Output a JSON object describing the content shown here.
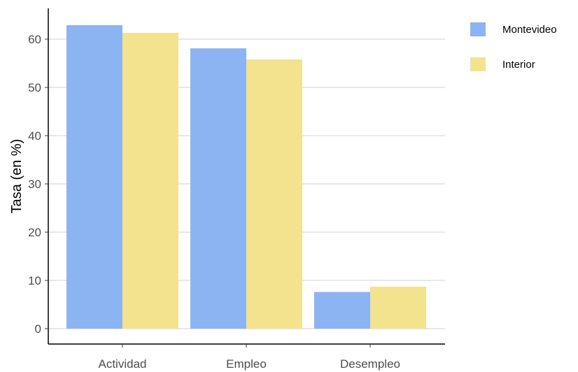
{
  "chart_data": {
    "type": "bar",
    "title": "",
    "xlabel": "",
    "ylabel": "Tasa (en %)",
    "categories": [
      "Actividad",
      "Empleo",
      "Desempleo"
    ],
    "series": [
      {
        "name": "Montevideo",
        "values": [
          62.9,
          58.1,
          7.6
        ],
        "color": "#8db4f2"
      },
      {
        "name": "Interior",
        "values": [
          61.3,
          55.8,
          8.7
        ],
        "color": "#f3e38e"
      }
    ],
    "ylim": [
      0,
      65
    ],
    "yticks": [
      0,
      10,
      20,
      30,
      40,
      50,
      60
    ],
    "grid": "horizontal",
    "legend_position": "right"
  }
}
